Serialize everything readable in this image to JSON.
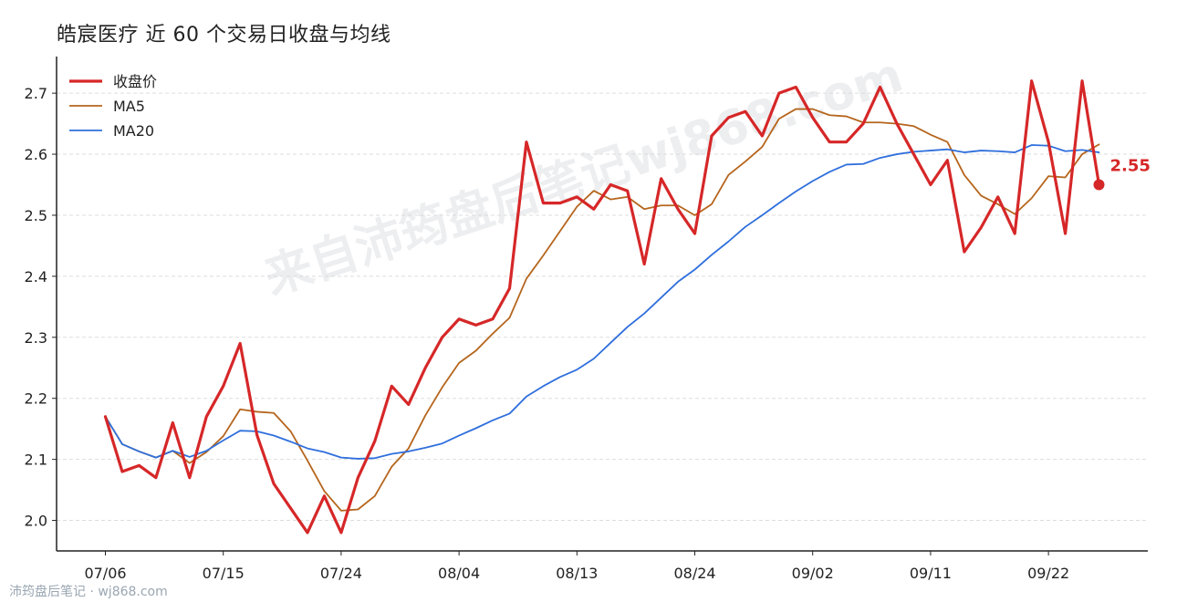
{
  "chart_data": {
    "type": "line",
    "title": "皓宸医疗 近 60 个交易日收盘与均线",
    "xlabel": "",
    "ylabel": "",
    "ylim": [
      1.95,
      2.76
    ],
    "yticks": [
      "2.0",
      "2.1",
      "2.2",
      "2.3",
      "2.4",
      "2.5",
      "2.6",
      "2.7"
    ],
    "x_tick_labels": [
      "07/06",
      "07/15",
      "07/24",
      "08/04",
      "08/13",
      "08/24",
      "09/02",
      "09/11",
      "09/22"
    ],
    "x_tick_index": [
      0,
      7,
      14,
      21,
      28,
      35,
      42,
      49,
      56
    ],
    "grid": "horizontal dashed",
    "legend_position": "top-left",
    "series": [
      {
        "name": "收盘价",
        "color": "#d62728",
        "values": [
          2.17,
          2.08,
          2.09,
          2.07,
          2.16,
          2.07,
          2.17,
          2.22,
          2.29,
          2.14,
          2.06,
          2.02,
          1.98,
          2.04,
          1.98,
          2.07,
          2.13,
          2.22,
          2.19,
          2.25,
          2.3,
          2.33,
          2.32,
          2.33,
          2.38,
          2.62,
          2.52,
          2.52,
          2.53,
          2.51,
          2.55,
          2.54,
          2.42,
          2.56,
          2.51,
          2.47,
          2.63,
          2.66,
          2.67,
          2.63,
          2.7,
          2.71,
          2.66,
          2.62,
          2.62,
          2.65,
          2.71,
          2.65,
          2.6,
          2.55,
          2.59,
          2.44,
          2.48,
          2.53,
          2.47,
          2.72,
          2.62,
          2.47,
          2.72,
          2.55
        ]
      },
      {
        "name": "MA5",
        "color": "#b5651d",
        "values": [
          2.17,
          2.125,
          2.113,
          2.103,
          2.114,
          2.094,
          2.112,
          2.138,
          2.182,
          2.178,
          2.176,
          2.146,
          2.098,
          2.048,
          2.016,
          2.018,
          2.04,
          2.088,
          2.118,
          2.172,
          2.218,
          2.258,
          2.278,
          2.306,
          2.332,
          2.396,
          2.434,
          2.474,
          2.514,
          2.54,
          2.526,
          2.53,
          2.51,
          2.516,
          2.516,
          2.5,
          2.518,
          2.566,
          2.588,
          2.612,
          2.658,
          2.674,
          2.674,
          2.664,
          2.662,
          2.652,
          2.652,
          2.65,
          2.646,
          2.632,
          2.62,
          2.566,
          2.532,
          2.518,
          2.502,
          2.528,
          2.564,
          2.562,
          2.6,
          2.616
        ]
      },
      {
        "name": "MA20",
        "color": "#2f6fdc",
        "values": [
          2.17,
          2.125,
          2.113,
          2.103,
          2.114,
          2.104,
          2.114,
          2.131,
          2.147,
          2.146,
          2.139,
          2.129,
          2.118,
          2.112,
          2.103,
          2.101,
          2.102,
          2.109,
          2.113,
          2.119,
          2.126,
          2.139,
          2.151,
          2.164,
          2.175,
          2.203,
          2.22,
          2.235,
          2.247,
          2.265,
          2.291,
          2.317,
          2.339,
          2.365,
          2.391,
          2.411,
          2.435,
          2.457,
          2.481,
          2.5,
          2.52,
          2.539,
          2.556,
          2.571,
          2.583,
          2.584,
          2.594,
          2.6,
          2.604,
          2.606,
          2.608,
          2.603,
          2.606,
          2.605,
          2.603,
          2.615,
          2.614,
          2.605,
          2.607,
          2.603
        ]
      }
    ],
    "last_value_label": "2.55"
  },
  "watermark": "来自沛筠盘后笔记wj868.com",
  "footer": "沛筠盘后笔记 · wj868.com"
}
